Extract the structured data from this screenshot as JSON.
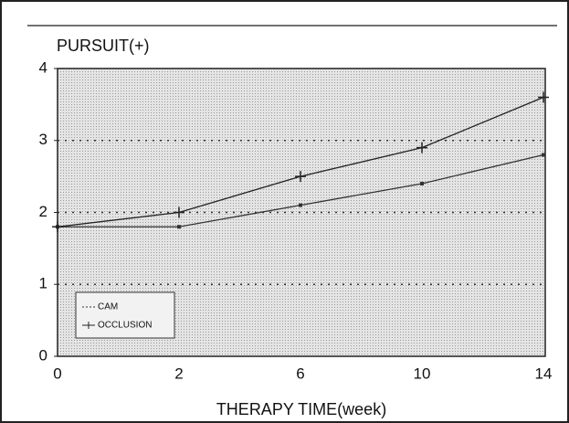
{
  "chart_data": {
    "type": "line",
    "ylabel": "PURSUIT(+)",
    "xlabel": "THERAPY TIME(week)",
    "categories": [
      "0",
      "2",
      "6",
      "10",
      "14"
    ],
    "series": [
      {
        "name": "CAM",
        "color": "#333333",
        "values": [
          1.8,
          1.8,
          2.1,
          2.4,
          2.8
        ]
      },
      {
        "name": "OCCLUSION",
        "color": "#222222",
        "values": [
          1.8,
          2.0,
          2.5,
          2.9,
          3.6
        ]
      }
    ],
    "ylim": [
      0,
      4
    ],
    "yticks": [
      0,
      1,
      2,
      3,
      4
    ],
    "grid": true,
    "legend": "lower left"
  }
}
